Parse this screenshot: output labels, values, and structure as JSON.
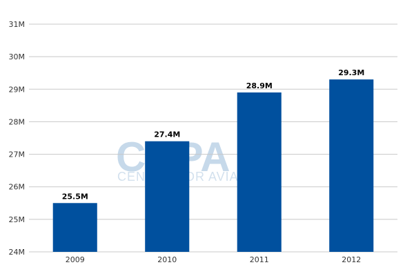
{
  "watermark": {
    "logo_text": "CAPA",
    "tagline": "CENTRE FOR AVIATION"
  },
  "colors": {
    "bar": "#00509e",
    "grid": "#c8c8c8",
    "axis_text": "#333333",
    "watermark": "#c6d9ea"
  },
  "chart_data": {
    "type": "bar",
    "title": "",
    "xlabel": "",
    "ylabel": "",
    "categories": [
      "2009",
      "2010",
      "2011",
      "2012"
    ],
    "values": [
      25.5,
      27.4,
      28.9,
      29.3
    ],
    "data_labels": [
      "25.5M",
      "27.4M",
      "28.9M",
      "29.3M"
    ],
    "ylim": [
      24,
      31
    ],
    "y_ticks": [
      24,
      25,
      26,
      27,
      28,
      29,
      30,
      31
    ],
    "y_tick_labels": [
      "24M",
      "25M",
      "26M",
      "27M",
      "28M",
      "29M",
      "30M",
      "31M"
    ],
    "grid": true,
    "legend": "none"
  }
}
